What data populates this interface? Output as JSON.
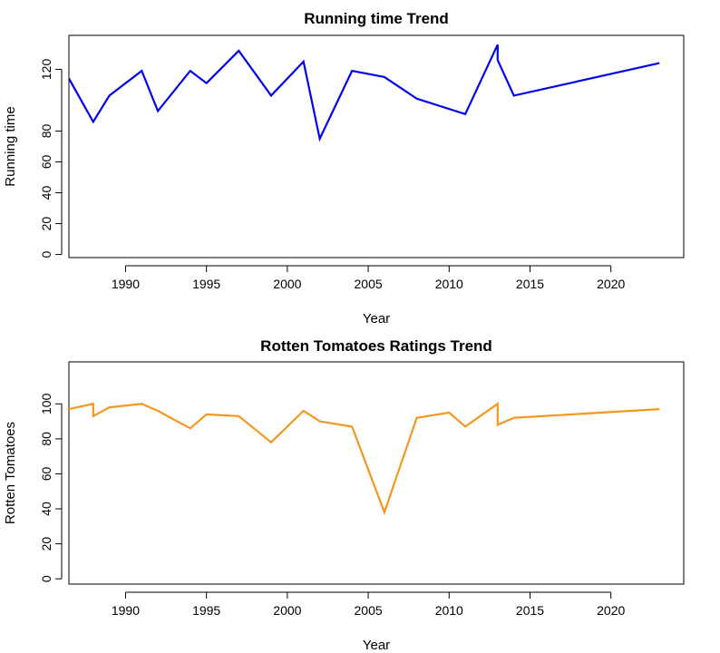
{
  "chart_data": [
    {
      "type": "line",
      "title": "Running time Trend",
      "xlabel": "Year",
      "ylabel": "Running time",
      "xlim": [
        1986.5,
        2024.5
      ],
      "ylim": [
        -2,
        142
      ],
      "x_ticks": [
        1990,
        1995,
        2000,
        2005,
        2010,
        2015,
        2020
      ],
      "y_ticks": [
        0,
        20,
        40,
        60,
        80,
        120
      ],
      "grid": false,
      "series": [
        {
          "color": "#0000ee",
          "x": [
            1986.5,
            1988,
            1989,
            1991,
            1992,
            1994,
            1995,
            1997,
            1999,
            2001,
            2002,
            2004,
            2006,
            2008,
            2011,
            2013,
            2013,
            2014,
            2023
          ],
          "y": [
            114,
            86,
            103,
            119,
            93,
            119,
            111,
            132,
            103,
            125,
            75,
            119,
            115,
            101,
            91,
            136,
            126,
            103,
            124
          ]
        }
      ]
    },
    {
      "type": "line",
      "title": "Rotten Tomatoes Ratings Trend",
      "xlabel": "Year",
      "ylabel": "Rotten Tomatoes",
      "xlim": [
        1986.5,
        2024.5
      ],
      "ylim": [
        -3,
        124
      ],
      "x_ticks": [
        1990,
        1995,
        2000,
        2005,
        2010,
        2015,
        2020
      ],
      "y_ticks": [
        0,
        20,
        40,
        60,
        80,
        100
      ],
      "grid": false,
      "series": [
        {
          "color": "#f5961e",
          "x": [
            1986.5,
            1988,
            1988,
            1989,
            1991,
            1992,
            1994,
            1995,
            1997,
            1999,
            2001,
            2002,
            2004,
            2006,
            2008,
            2010,
            2011,
            2013,
            2013,
            2014,
            2023
          ],
          "y": [
            97,
            100,
            93,
            98,
            100,
            96,
            86,
            94,
            93,
            78,
            96,
            90,
            87,
            38,
            92,
            95,
            87,
            100,
            88,
            92,
            97
          ]
        }
      ]
    }
  ]
}
